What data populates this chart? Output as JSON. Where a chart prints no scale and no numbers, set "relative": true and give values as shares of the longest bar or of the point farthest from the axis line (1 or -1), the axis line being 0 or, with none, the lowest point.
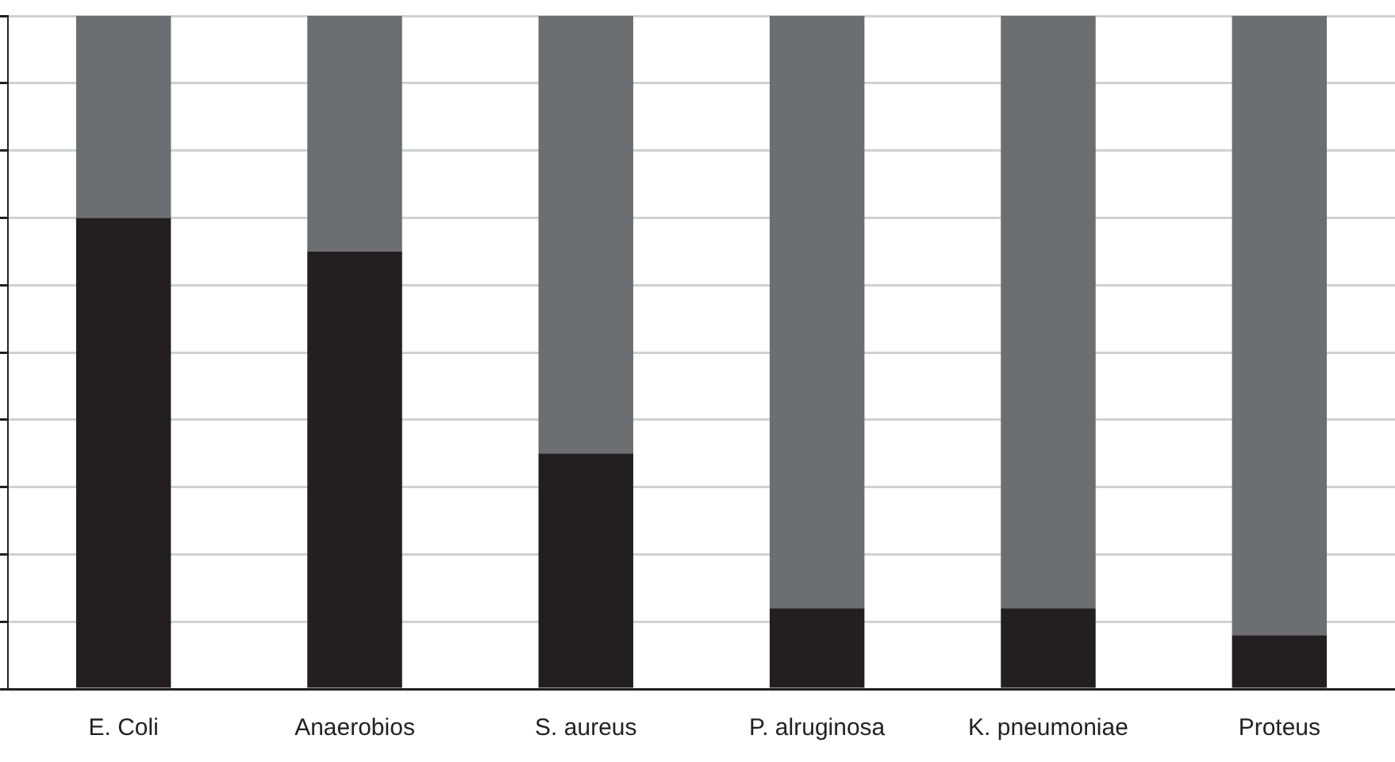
{
  "chart_data": {
    "type": "bar",
    "stacked": true,
    "relative": true,
    "grid": "y",
    "legend": false,
    "categories": [
      "E. Coli",
      "Anaerobios",
      "S. aureus",
      "P. alruginosa",
      "K. pneumoniae",
      "Proteus"
    ],
    "series": [
      {
        "color": "#231f20",
        "values": [
          0.7,
          0.65,
          0.35,
          0.12,
          0.12,
          0.08
        ]
      },
      {
        "color": "#6d6e71",
        "values": [
          0.3,
          0.35,
          0.65,
          0.88,
          0.88,
          0.92
        ]
      }
    ]
  }
}
